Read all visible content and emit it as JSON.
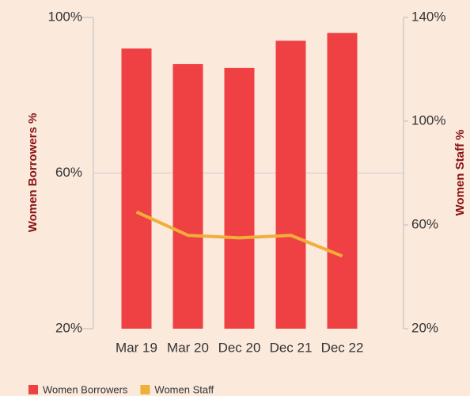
{
  "chart_data": {
    "type": "bar-line",
    "categories": [
      "Mar 19",
      "Mar 20",
      "Dec 20",
      "Dec 21",
      "Dec 22"
    ],
    "series": [
      {
        "name": "Women Borrowers",
        "color": "#ef4044",
        "type": "bar",
        "values": [
          92,
          88,
          87,
          94,
          96
        ]
      },
      {
        "name": "Women Staff",
        "color": "#f0ae3a",
        "type": "line",
        "axis": "y2",
        "values": [
          65,
          56,
          55,
          56,
          48
        ]
      }
    ],
    "ylabel": "Women Borrowers %",
    "y2label": "Women Staff %",
    "ylim": [
      20,
      100
    ],
    "yticks": [
      {
        "value": 20,
        "label": "20%"
      },
      {
        "value": 60,
        "label": "60%"
      },
      {
        "value": 100,
        "label": "100%"
      }
    ],
    "y2lim": [
      20,
      140
    ],
    "y2ticks": [
      {
        "value": 20,
        "label": "20%"
      },
      {
        "value": 60,
        "label": "60%"
      },
      {
        "value": 100,
        "label": "100%"
      },
      {
        "value": 140,
        "label": "140%"
      }
    ],
    "grid": true,
    "legend": "bottom-left"
  }
}
